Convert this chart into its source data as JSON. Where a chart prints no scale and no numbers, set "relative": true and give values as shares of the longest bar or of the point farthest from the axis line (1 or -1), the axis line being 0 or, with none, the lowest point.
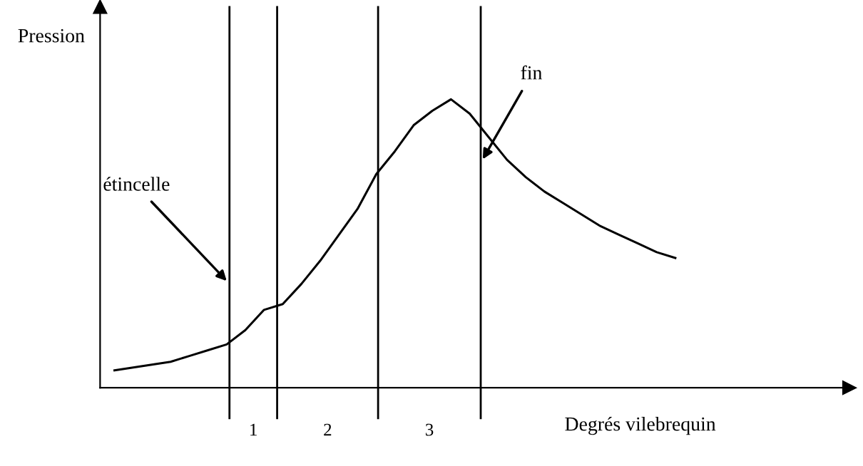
{
  "chart_data": {
    "type": "line",
    "relative": true,
    "xlabel": "Degrés vilebrequin",
    "ylabel": "Pression",
    "color": "#000000",
    "categories": [
      null,
      null,
      null,
      null,
      null,
      null,
      null,
      null,
      null,
      null,
      null,
      null,
      null,
      null,
      null,
      null,
      null,
      null,
      null,
      null,
      null,
      null,
      null,
      null,
      null,
      null,
      null,
      null,
      null,
      null,
      null
    ],
    "values": [
      0.06,
      0.07,
      0.08,
      0.09,
      0.11,
      0.13,
      0.15,
      0.2,
      0.27,
      0.29,
      0.36,
      0.44,
      0.53,
      0.62,
      0.74,
      0.82,
      0.91,
      0.96,
      1,
      0.95,
      0.87,
      0.79,
      0.73,
      0.68,
      0.64,
      0.6,
      0.56,
      0.53,
      0.5,
      0.47,
      0.45
    ],
    "annotations": [
      "étincelle",
      "fin",
      "1",
      "2",
      "3"
    ],
    "grid": false,
    "legend": false
  }
}
